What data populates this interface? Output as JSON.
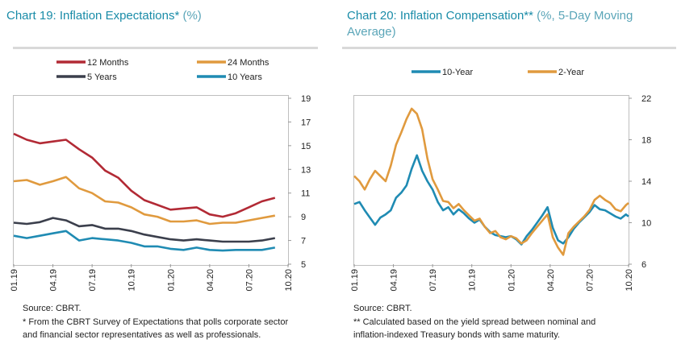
{
  "chart_data": [
    {
      "type": "line",
      "title_prefix": "Chart 19: Inflation Expectations*",
      "title_unit": "(%)",
      "xlabel": "",
      "ylabel": "",
      "x_ticks": [
        "01.19",
        "04.19",
        "07.19",
        "10.19",
        "01.20",
        "04.20",
        "07.20",
        "10.20"
      ],
      "x_range": [
        0,
        21
      ],
      "yticks": [
        "5",
        "7",
        "9",
        "11",
        "13",
        "15",
        "17",
        "19"
      ],
      "ylim": [
        5,
        19
      ],
      "y_axis": "right",
      "grid": false,
      "legend": "top",
      "series": [
        {
          "name": "12 Months",
          "color": "#b22a35",
          "values": [
            16,
            15.5,
            15.2,
            15.35,
            15.5,
            14.7,
            14,
            12.9,
            12.3,
            11.2,
            10.4,
            10,
            9.6,
            9.7,
            9.8,
            9.2,
            9.0,
            9.3,
            9.8,
            10.3,
            10.6
          ]
        },
        {
          "name": "24 Months",
          "color": "#e09a3e",
          "values": [
            12.0,
            12.1,
            11.7,
            12.0,
            12.35,
            11.4,
            11.0,
            10.3,
            10.2,
            9.8,
            9.2,
            9.0,
            8.6,
            8.6,
            8.7,
            8.4,
            8.5,
            8.5,
            8.7,
            8.9,
            9.1
          ]
        },
        {
          "name": "5 Years",
          "color": "#3b3f4c",
          "values": [
            8.5,
            8.4,
            8.55,
            8.9,
            8.7,
            8.2,
            8.3,
            8.0,
            8.0,
            7.8,
            7.5,
            7.3,
            7.1,
            7.0,
            7.1,
            7.0,
            6.9,
            6.9,
            6.9,
            7.0,
            7.2
          ]
        },
        {
          "name": "10 Years",
          "color": "#1f8bb3",
          "values": [
            7.4,
            7.2,
            7.4,
            7.6,
            7.8,
            7.0,
            7.2,
            7.1,
            7.0,
            6.8,
            6.5,
            6.5,
            6.3,
            6.2,
            6.4,
            6.2,
            6.15,
            6.2,
            6.2,
            6.2,
            6.4
          ]
        }
      ],
      "source": "Source: CBRT.",
      "footnote_lines": [
        "* From the CBRT Survey of Expectations that polls corporate sector",
        "and financial sector representatives as well as professionals."
      ]
    },
    {
      "type": "line",
      "title_prefix": "Chart 20: Inflation Compensation**",
      "title_unit_line1": "(%, 5-Day Moving",
      "title_unit_line2": "Average)",
      "xlabel": "",
      "ylabel": "",
      "x_ticks": [
        "01.19",
        "04.19",
        "07.19",
        "10.19",
        "01.20",
        "04.20",
        "07.20",
        "10.20"
      ],
      "x_range": [
        0,
        21
      ],
      "yticks": [
        "6",
        "10",
        "14",
        "18",
        "22"
      ],
      "ylim": [
        6,
        22
      ],
      "y_axis": "right",
      "grid": false,
      "legend": "top",
      "series": [
        {
          "name": "10-Year",
          "color": "#1f8bb3",
          "x": [
            0,
            0.4,
            0.8,
            1.2,
            1.6,
            2.0,
            2.4,
            2.8,
            3.2,
            3.6,
            4.0,
            4.4,
            4.8,
            5.2,
            5.6,
            6.0,
            6.4,
            6.8,
            7.2,
            7.6,
            8.0,
            8.4,
            8.8,
            9.2,
            9.6,
            10.0,
            10.4,
            10.8,
            11.2,
            11.6,
            12.0,
            12.4,
            12.8,
            13.2,
            13.6,
            14.0,
            14.4,
            14.8,
            15.2,
            15.6,
            16.0,
            16.4,
            16.8,
            17.2,
            17.6,
            18.0,
            18.4,
            18.8,
            19.2,
            19.6,
            20.0,
            20.4,
            20.8,
            21.0
          ],
          "values": [
            11.8,
            12,
            11.2,
            10.5,
            9.8,
            10.5,
            10.8,
            11.2,
            12.4,
            12.9,
            13.6,
            15.2,
            16.5,
            15.0,
            14.0,
            13.2,
            12.0,
            11.2,
            11.5,
            10.8,
            11.3,
            10.9,
            10.4,
            10.0,
            10.3,
            9.6,
            9.1,
            8.8,
            8.7,
            8.6,
            8.7,
            8.4,
            7.9,
            8.7,
            9.3,
            10.0,
            10.7,
            11.5,
            9.5,
            8.3,
            8.0,
            8.6,
            9.4,
            10.0,
            10.5,
            11.0,
            11.7,
            11.3,
            11.2,
            10.9,
            10.6,
            10.4,
            10.8,
            10.6
          ]
        },
        {
          "name": "2-Year",
          "color": "#e09a3e",
          "x": [
            0,
            0.4,
            0.8,
            1.2,
            1.6,
            2.0,
            2.4,
            2.8,
            3.2,
            3.6,
            4.0,
            4.4,
            4.8,
            5.2,
            5.6,
            6.0,
            6.4,
            6.8,
            7.2,
            7.6,
            8.0,
            8.4,
            8.8,
            9.2,
            9.6,
            10.0,
            10.4,
            10.8,
            11.2,
            11.6,
            12.0,
            12.4,
            12.8,
            13.2,
            13.6,
            14.0,
            14.4,
            14.8,
            15.2,
            15.6,
            16.0,
            16.4,
            16.8,
            17.2,
            17.6,
            18.0,
            18.4,
            18.8,
            19.2,
            19.6,
            20.0,
            20.4,
            20.8,
            21.0
          ],
          "values": [
            14.5,
            14,
            13.2,
            14.2,
            15.0,
            14.5,
            14.0,
            15.5,
            17.5,
            18.7,
            20.0,
            21.0,
            20.5,
            19.0,
            16.2,
            14.2,
            13.2,
            12.1,
            12.0,
            11.4,
            11.8,
            11.2,
            10.7,
            10.2,
            10.4,
            9.6,
            9.0,
            9.2,
            8.6,
            8.4,
            8.7,
            8.5,
            8.0,
            8.3,
            9.0,
            9.6,
            10.2,
            10.8,
            8.6,
            7.6,
            6.9,
            9.0,
            9.6,
            10.1,
            10.6,
            11.2,
            12.2,
            12.6,
            12.2,
            11.9,
            11.3,
            11.1,
            11.7,
            11.9
          ]
        }
      ],
      "source": "Source: CBRT.",
      "footnote_lines": [
        "** Calculated based on the yield spread between nominal and",
        "inflation-indexed Treasury bonds with same maturity."
      ]
    }
  ]
}
